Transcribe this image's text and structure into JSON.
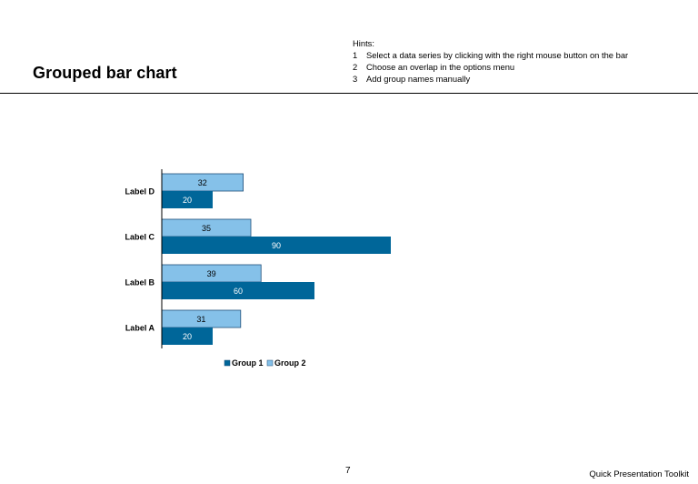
{
  "header": {
    "title": "Grouped bar chart",
    "hints_heading": "Hints:",
    "hints": [
      {
        "num": "1",
        "text": "Select a data series by clicking with the right mouse button on the bar"
      },
      {
        "num": "2",
        "text": "Choose an overlap in the options menu"
      },
      {
        "num": "3",
        "text": "Add group names manually"
      }
    ]
  },
  "chart_data": {
    "type": "bar",
    "orientation": "horizontal",
    "categories": [
      "Label A",
      "Label B",
      "Label C",
      "Label D"
    ],
    "series": [
      {
        "name": "Group 1",
        "values": [
          20,
          60,
          90,
          20
        ],
        "color": "#006699"
      },
      {
        "name": "Group 2",
        "values": [
          31,
          39,
          35,
          32
        ],
        "color": "#85C1E9"
      }
    ],
    "title": "",
    "xlabel": "",
    "ylabel": "",
    "xlim": [
      0,
      90
    ],
    "grid": false,
    "legend": "bottom"
  },
  "footer": {
    "page_number": "7",
    "brand": "Quick Presentation Toolkit"
  }
}
